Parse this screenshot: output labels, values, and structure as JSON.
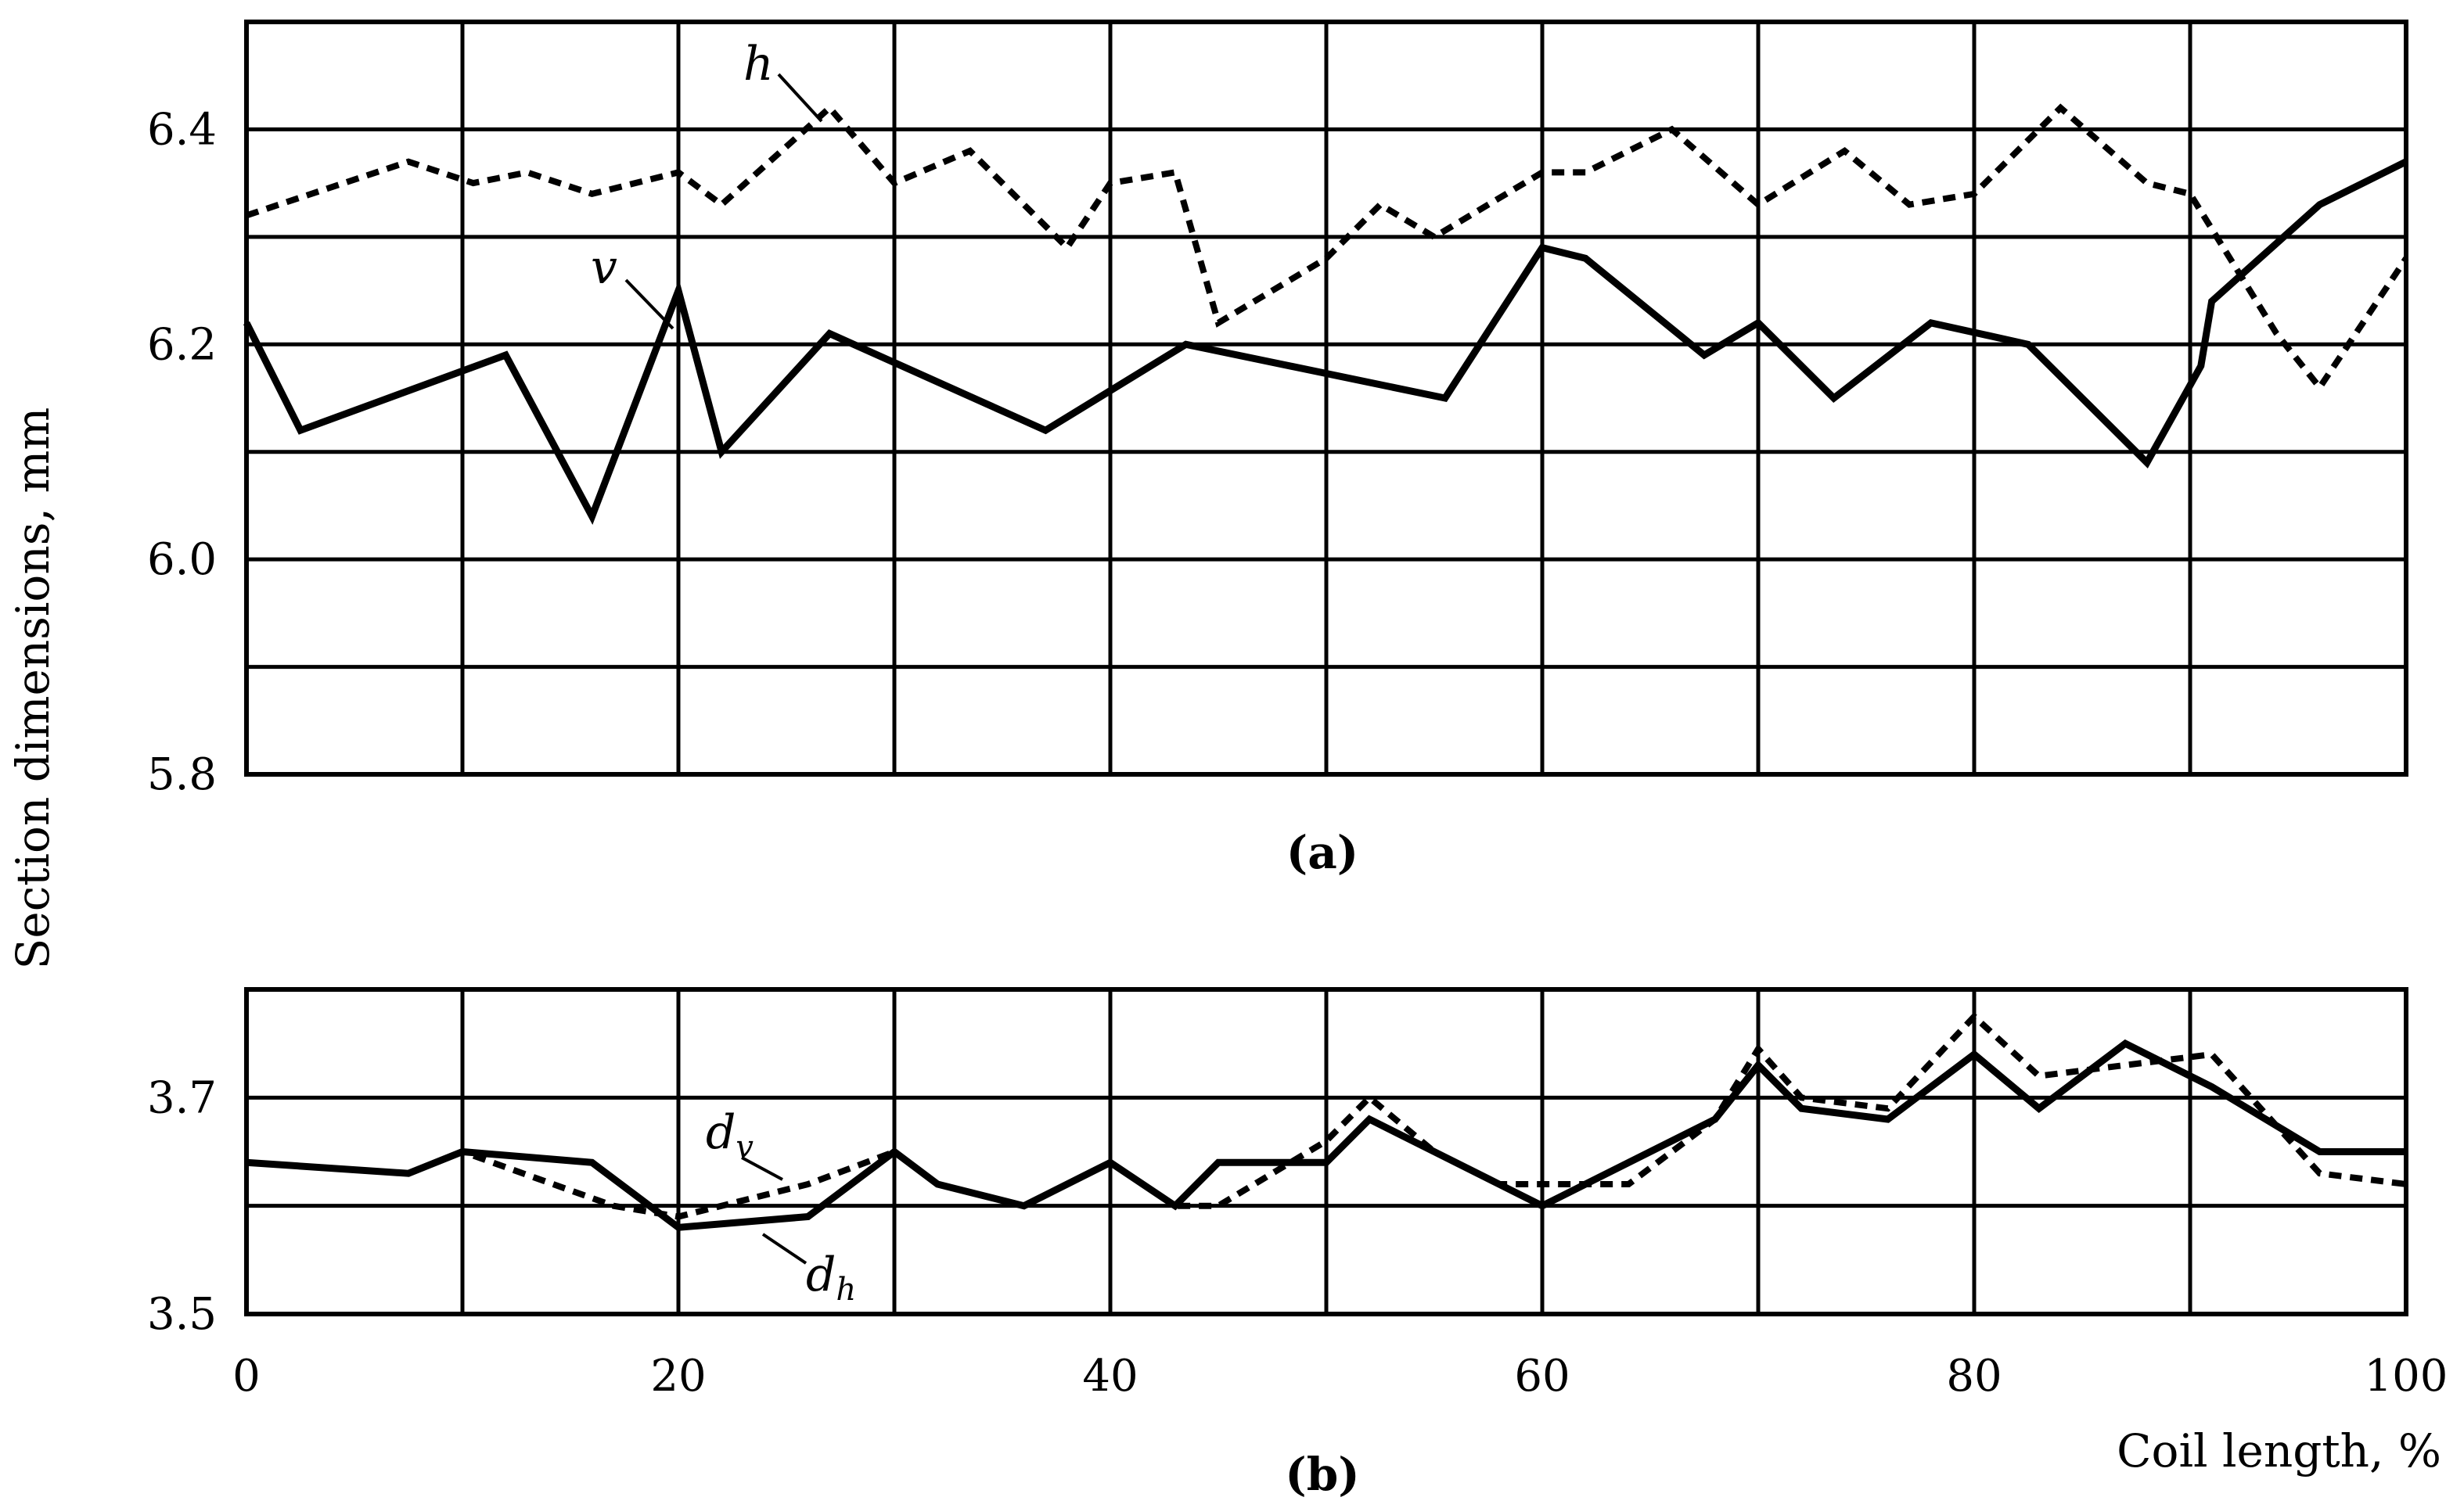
{
  "chart_data": [
    {
      "panel_label": "(a)",
      "type": "line",
      "xlim": [
        0,
        100
      ],
      "ylim": [
        5.8,
        6.5
      ],
      "x_gridlines": [
        0,
        10,
        20,
        30,
        40,
        50,
        60,
        70,
        80,
        90,
        100
      ],
      "y_gridlines": [
        5.8,
        5.9,
        6.0,
        6.1,
        6.2,
        6.3,
        6.4,
        6.5
      ],
      "y_ticks": [
        "5.8",
        "6.0",
        "6.2",
        "6.4"
      ],
      "y_tick_values": [
        5.8,
        6.0,
        6.2,
        6.4
      ],
      "grid": true,
      "series": [
        {
          "name": "h",
          "style": "dashed",
          "x": [
            0,
            7.5,
            10.5,
            13,
            16,
            20,
            22,
            27,
            30,
            33.5,
            38,
            40,
            43,
            45,
            50,
            52.5,
            55,
            60,
            62,
            66,
            70,
            74,
            77,
            80,
            84,
            88,
            90,
            94,
            96,
            100
          ],
          "y": [
            6.32,
            6.37,
            6.35,
            6.36,
            6.34,
            6.36,
            6.33,
            6.42,
            6.35,
            6.38,
            6.29,
            6.35,
            6.36,
            6.22,
            6.28,
            6.33,
            6.3,
            6.36,
            6.36,
            6.4,
            6.33,
            6.38,
            6.33,
            6.34,
            6.42,
            6.35,
            6.34,
            6.21,
            6.16,
            6.28
          ]
        },
        {
          "name": "v",
          "style": "solid",
          "x": [
            0,
            2.5,
            12,
            16,
            20,
            22,
            27,
            37,
            43.5,
            55.5,
            60,
            62,
            67.5,
            70,
            73.5,
            78,
            82.5,
            88,
            90.5,
            91,
            96,
            100
          ],
          "y": [
            6.22,
            6.12,
            6.19,
            6.04,
            6.25,
            6.1,
            6.21,
            6.12,
            6.2,
            6.15,
            6.29,
            6.28,
            6.19,
            6.22,
            6.15,
            6.22,
            6.2,
            6.09,
            6.18,
            6.24,
            6.33,
            6.37
          ]
        }
      ]
    },
    {
      "panel_label": "(b)",
      "type": "line",
      "xlim": [
        0,
        100
      ],
      "ylim": [
        3.5,
        3.8
      ],
      "x_gridlines": [
        0,
        10,
        20,
        30,
        40,
        50,
        60,
        70,
        80,
        90,
        100
      ],
      "y_gridlines": [
        3.5,
        3.6,
        3.7,
        3.8
      ],
      "x_ticks": [
        "0",
        "20",
        "40",
        "60",
        "80",
        "100"
      ],
      "x_tick_values": [
        0,
        20,
        40,
        60,
        80,
        100
      ],
      "y_ticks": [
        "3.5",
        "3.7"
      ],
      "y_tick_values": [
        3.5,
        3.7
      ],
      "xlabel": "Coil length, %",
      "grid": true,
      "series": [
        {
          "name": "d",
          "subscript": "v",
          "style": "dashed",
          "x": [
            0,
            7.5,
            10,
            17,
            20,
            26,
            30,
            32,
            36,
            40,
            43,
            45,
            50,
            52,
            55,
            58,
            60,
            64,
            68,
            70,
            72,
            76,
            80,
            83,
            87,
            91,
            96,
            100
          ],
          "y": [
            3.64,
            3.63,
            3.65,
            3.6,
            3.59,
            3.62,
            3.65,
            3.62,
            3.6,
            3.64,
            3.6,
            3.6,
            3.66,
            3.7,
            3.65,
            3.62,
            3.62,
            3.62,
            3.68,
            3.745,
            3.7,
            3.69,
            3.775,
            3.72,
            3.73,
            3.74,
            3.63,
            3.62
          ]
        },
        {
          "name": "d",
          "subscript": "h",
          "style": "solid",
          "x": [
            0,
            7.5,
            10,
            16,
            20,
            26,
            30,
            32,
            36,
            40,
            43,
            45,
            50,
            52,
            55,
            58,
            60,
            64,
            68,
            70,
            72,
            76,
            80,
            83,
            87,
            91,
            96,
            100
          ],
          "y": [
            3.64,
            3.63,
            3.65,
            3.64,
            3.58,
            3.59,
            3.65,
            3.62,
            3.6,
            3.64,
            3.6,
            3.64,
            3.64,
            3.68,
            3.65,
            3.62,
            3.6,
            3.64,
            3.68,
            3.73,
            3.69,
            3.68,
            3.74,
            3.69,
            3.75,
            3.71,
            3.65,
            3.65
          ]
        }
      ]
    }
  ],
  "shared_ylabel": "Section dimensions, mm"
}
